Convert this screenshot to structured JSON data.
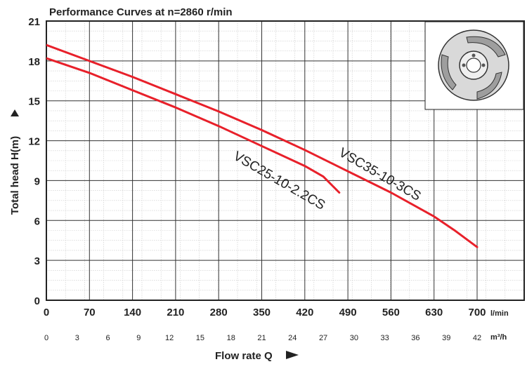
{
  "chart_data": {
    "type": "line",
    "title": "Performance Curves at n=2860 r/min",
    "ylabel": "Total head H(m)",
    "xlabel": "Flow rate Q",
    "ylim": [
      0,
      21
    ],
    "y_ticks": [
      "0",
      "3",
      "6",
      "9",
      "12",
      "15",
      "18",
      "21"
    ],
    "x_ticks_lmin": [
      "0",
      "70",
      "140",
      "210",
      "280",
      "350",
      "420",
      "490",
      "560",
      "630",
      "700"
    ],
    "x_unit_lmin": "l/min",
    "x_ticks_m3h": [
      "0",
      "3",
      "6",
      "9",
      "12",
      "15",
      "18",
      "21",
      "24",
      "27",
      "30",
      "33",
      "36",
      "39",
      "42"
    ],
    "x_unit_m3h": "m³/h",
    "xlim_lmin": [
      0,
      700
    ],
    "grid": true,
    "series": [
      {
        "name": "VSC25-10-2.2CS",
        "color": "#e8202a",
        "x": [
          0,
          70,
          140,
          210,
          280,
          350,
          420,
          450,
          476
        ],
        "y": [
          18.2,
          17.1,
          15.8,
          14.5,
          13.1,
          11.6,
          10.1,
          9.3,
          8.1
        ]
      },
      {
        "name": "VSC35-10-3CS",
        "color": "#e8202a",
        "x": [
          0,
          70,
          140,
          210,
          280,
          350,
          420,
          490,
          560,
          630,
          665,
          700
        ],
        "y": [
          19.2,
          18.0,
          16.8,
          15.5,
          14.2,
          12.8,
          11.3,
          9.7,
          8.1,
          6.3,
          5.2,
          4.0
        ]
      }
    ]
  }
}
